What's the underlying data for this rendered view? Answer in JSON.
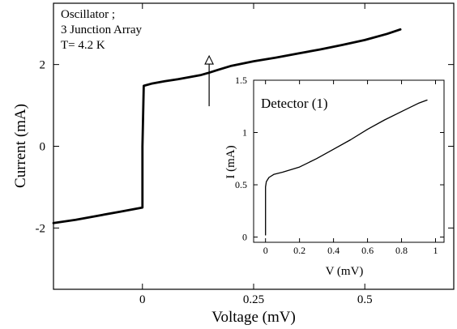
{
  "chart_data": [
    {
      "type": "line",
      "name": "main",
      "xlabel": "Voltage (mV)",
      "ylabel": "Current (mA)",
      "xlim": [
        -0.2,
        0.7
      ],
      "ylim": [
        -3.5,
        3.5
      ],
      "x_ticks": [
        0,
        0.25,
        0.5
      ],
      "x_tick_labels": [
        "0",
        "0.25",
        "0.5"
      ],
      "y_ticks": [
        -2,
        0,
        2
      ],
      "y_tick_labels": [
        "-2",
        "0",
        "2"
      ],
      "annotation_lines": [
        "Oscillator ;",
        "3 Junction Array",
        "T= 4.2 K"
      ],
      "arrow": {
        "x": 0.15,
        "y_tail": 0.98,
        "y_head": 2.21
      },
      "grid": false,
      "series": [
        {
          "x": [
            -0.2,
            -0.15,
            -0.1,
            -0.05,
            0,
            0,
            0,
            0.003,
            0.02,
            0.05,
            0.08,
            0.11,
            0.13,
            0.15,
            0.17,
            0.2,
            0.25,
            0.3,
            0.35,
            0.4,
            0.45,
            0.5,
            0.55,
            0.58
          ],
          "y": [
            -1.88,
            -1.8,
            -1.7,
            -1.6,
            -1.5,
            -1.45,
            0.0,
            1.48,
            1.53,
            1.59,
            1.64,
            1.7,
            1.74,
            1.8,
            1.87,
            1.97,
            2.08,
            2.17,
            2.27,
            2.37,
            2.48,
            2.6,
            2.75,
            2.86
          ]
        }
      ]
    },
    {
      "type": "line",
      "name": "inset",
      "xlabel": "V (mV)",
      "ylabel": "I (mA)",
      "xlim": [
        -0.07,
        1.05
      ],
      "ylim": [
        -0.05,
        1.5
      ],
      "x_ticks": [
        0,
        0.2,
        0.4,
        0.6,
        0.8,
        1
      ],
      "x_tick_labels": [
        "0",
        "0.2",
        "0.4",
        "0.6",
        "0.8",
        "1"
      ],
      "y_ticks": [
        0,
        0.5,
        1,
        1.5
      ],
      "y_tick_labels": [
        "0",
        "0.5",
        "1",
        "1.5"
      ],
      "annotation": "Detector (1)",
      "grid": false,
      "series": [
        {
          "x": [
            0,
            0,
            0.005,
            0.02,
            0.05,
            0.1,
            0.2,
            0.3,
            0.4,
            0.5,
            0.6,
            0.7,
            0.8,
            0.9,
            0.95
          ],
          "y": [
            0.02,
            0.48,
            0.53,
            0.57,
            0.6,
            0.62,
            0.67,
            0.75,
            0.84,
            0.93,
            1.03,
            1.12,
            1.2,
            1.28,
            1.31
          ]
        }
      ]
    }
  ]
}
